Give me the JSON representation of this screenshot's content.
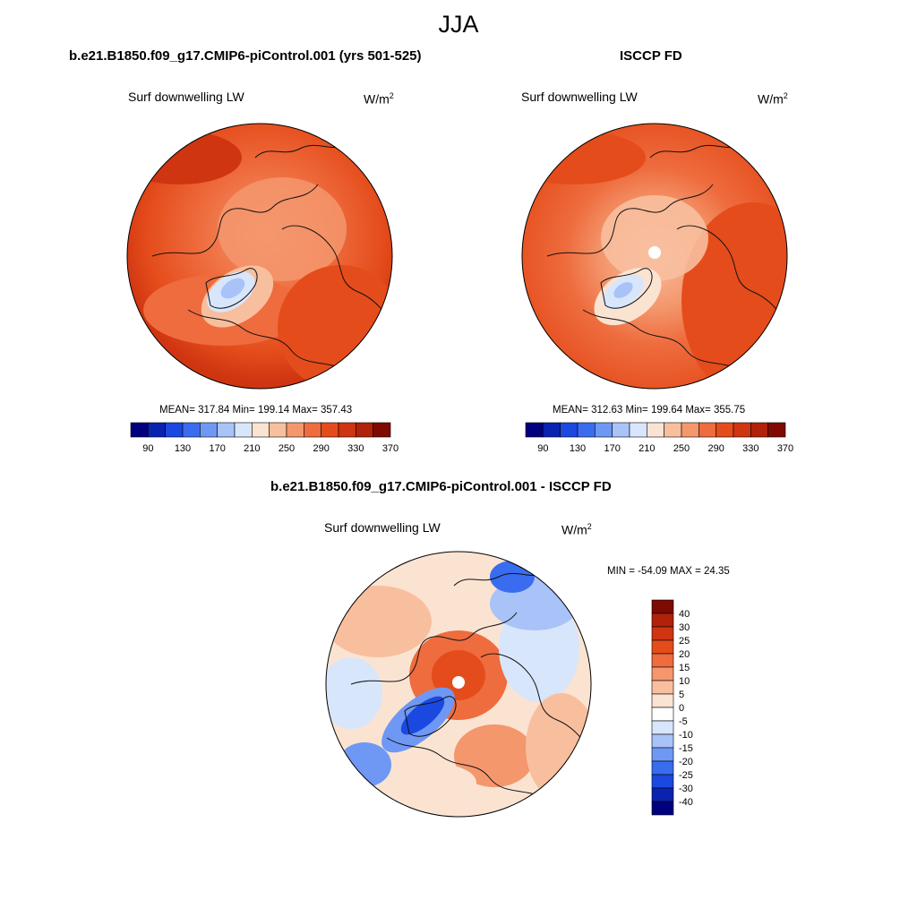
{
  "season": "JJA",
  "colors": {
    "abs_scale": [
      "#00007f",
      "#0a22b0",
      "#1b48e0",
      "#3a6cf0",
      "#6f98f5",
      "#a9c3f8",
      "#d8e6fb",
      "#fbe3d2",
      "#f8bf9e",
      "#f4976d",
      "#ee6c3e",
      "#e54c1b",
      "#cf3511",
      "#b0220a",
      "#7f0a02"
    ],
    "diff_scale": [
      "#00007f",
      "#0a22b0",
      "#1b48e0",
      "#3a6cf0",
      "#6f98f5",
      "#a9c3f8",
      "#d8e6fb",
      "#ffffff",
      "#fbe3d2",
      "#f8bf9e",
      "#f4976d",
      "#ee6c3e",
      "#e54c1b",
      "#cf3511",
      "#b0220a",
      "#7f0a02"
    ]
  },
  "panels": {
    "model": {
      "title": "b.e21.B1850.f09_g17.CMIP6-piControl.001 (yrs 501-525)",
      "variable": "Surf downwelling LW",
      "units_base": "W/m",
      "units_exp": "2",
      "stats": "MEAN= 317.84  Min= 199.14  Max= 357.43"
    },
    "obs": {
      "title": "ISCCP FD",
      "variable": "Surf downwelling LW",
      "units_base": "W/m",
      "units_exp": "2",
      "stats": "MEAN= 312.63  Min= 199.64  Max= 355.75"
    },
    "diff": {
      "title": "b.e21.B1850.f09_g17.CMIP6-piControl.001 - ISCCP FD",
      "variable": "Surf downwelling LW",
      "units_base": "W/m",
      "units_exp": "2",
      "stats": "MIN = -54.09 MAX =  24.35"
    }
  },
  "chart_data": [
    {
      "type": "heatmap",
      "projection": "north polar stereographic",
      "title": "b.e21.B1850.f09_g17.CMIP6-piControl.001 (yrs 501-525)",
      "variable": "Surf downwelling LW",
      "units": "W/m2",
      "mean": 317.84,
      "min": 199.14,
      "max": 357.43,
      "colorbar_levels": [
        90,
        110,
        130,
        150,
        170,
        190,
        210,
        230,
        250,
        270,
        290,
        310,
        330,
        350,
        370
      ],
      "colorbar_tick_labels": [
        "90",
        "130",
        "170",
        "210",
        "250",
        "290",
        "330",
        "370"
      ]
    },
    {
      "type": "heatmap",
      "projection": "north polar stereographic",
      "title": "ISCCP FD",
      "variable": "Surf downwelling LW",
      "units": "W/m2",
      "mean": 312.63,
      "min": 199.64,
      "max": 355.75,
      "colorbar_levels": [
        90,
        110,
        130,
        150,
        170,
        190,
        210,
        230,
        250,
        270,
        290,
        310,
        330,
        350,
        370
      ],
      "colorbar_tick_labels": [
        "90",
        "130",
        "170",
        "210",
        "250",
        "290",
        "330",
        "370"
      ]
    },
    {
      "type": "heatmap",
      "projection": "north polar stereographic",
      "title": "b.e21.B1850.f09_g17.CMIP6-piControl.001 - ISCCP FD",
      "variable": "Surf downwelling LW",
      "units": "W/m2",
      "min": -54.09,
      "max": 24.35,
      "colorbar_levels": [
        -40,
        -30,
        -25,
        -20,
        -15,
        -10,
        -5,
        0,
        5,
        10,
        15,
        20,
        25,
        30,
        40
      ],
      "colorbar_tick_labels": [
        "40",
        "30",
        "25",
        "20",
        "15",
        "10",
        "5",
        "0",
        "-5",
        "-10",
        "-15",
        "-20",
        "-25",
        "-30",
        "-40"
      ]
    }
  ]
}
